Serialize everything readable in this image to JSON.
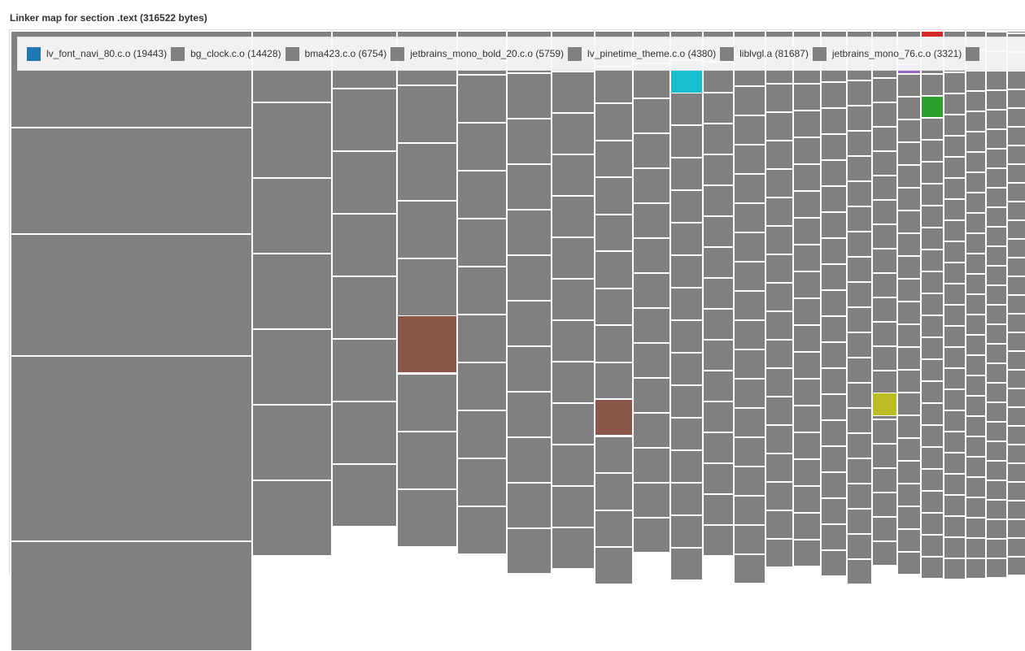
{
  "title": "Linker map for section .text (316522 bytes)",
  "chart_data": {
    "type": "treemap",
    "title": "Linker map for section .text (316522 bytes)",
    "legend_placement": "top-left",
    "legend": [
      {
        "label": "lv_font_navi_80.c.o (19443)",
        "color": "#1f77b4"
      },
      {
        "label": "bg_clock.c.o (14428)",
        "color": "#808080"
      },
      {
        "label": "bma423.c.o (6754)",
        "color": "#808080"
      },
      {
        "label": "jetbrains_mono_bold_20.c.o (5759)",
        "color": "#808080"
      },
      {
        "label": "lv_pinetime_theme.c.o (4380)",
        "color": "#808080"
      },
      {
        "label": "liblvgl.a (81687)",
        "color": "#808080"
      },
      {
        "label": "jetbrains_mono_76.c.o (3321)",
        "color": "#808080"
      }
    ],
    "default_cell_color": "#808080",
    "highlight_colors": [
      "#8c564b",
      "#17becf",
      "#bcbd22",
      "#9467bd",
      "#2ca02c",
      "#d62728"
    ]
  }
}
